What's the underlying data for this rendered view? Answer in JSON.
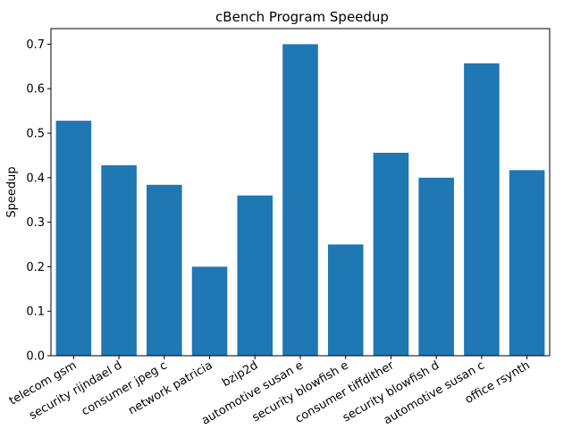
{
  "chart_data": {
    "type": "bar",
    "title": "cBench Program Speedup",
    "xlabel": "",
    "ylabel": "Speedup",
    "categories": [
      "telecom gsm",
      "security rijndael d",
      "consumer jpeg c",
      "network patricia",
      "bzip2d",
      "automotive susan e",
      "security blowfish e",
      "consumer tiffdither",
      "security blowfish d",
      "automotive susan c",
      "office rsynth"
    ],
    "values": [
      0.528,
      0.428,
      0.384,
      0.2,
      0.36,
      0.7,
      0.25,
      0.456,
      0.4,
      0.657,
      0.417
    ],
    "ylim": [
      0,
      0.735
    ],
    "yticks": [
      "0.0",
      "0.1",
      "0.2",
      "0.3",
      "0.4",
      "0.5",
      "0.6",
      "0.7"
    ],
    "bar_color": "#1f77b4",
    "grid": false
  }
}
